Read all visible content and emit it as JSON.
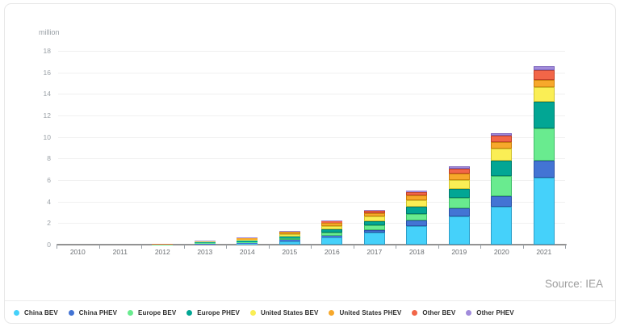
{
  "chart_data": {
    "type": "bar",
    "stacked": true,
    "unit_label": "million",
    "source_label": "Source: IEA",
    "categories": [
      "2010",
      "2011",
      "2012",
      "2013",
      "2014",
      "2015",
      "2016",
      "2017",
      "2018",
      "2019",
      "2020",
      "2021"
    ],
    "series": [
      {
        "name": "China BEV",
        "color": "#45d1fa",
        "border": "#2d9fc9",
        "values": [
          0.002,
          0.005,
          0.01,
          0.08,
          0.12,
          0.3,
          0.65,
          1.1,
          1.75,
          2.6,
          3.5,
          6.2
        ]
      },
      {
        "name": "China PHEV",
        "color": "#4374d4",
        "border": "#2d53a8",
        "values": [
          0.0,
          0.002,
          0.005,
          0.02,
          0.04,
          0.12,
          0.17,
          0.27,
          0.5,
          0.75,
          1.0,
          1.6
        ]
      },
      {
        "name": "Europe BEV",
        "color": "#69eb8f",
        "border": "#3fbd68",
        "values": [
          0.002,
          0.005,
          0.01,
          0.06,
          0.1,
          0.19,
          0.3,
          0.4,
          0.57,
          1.0,
          1.9,
          3.0
        ]
      },
      {
        "name": "Europe PHEV",
        "color": "#02a694",
        "border": "#017d70",
        "values": [
          0.0,
          0.002,
          0.005,
          0.03,
          0.08,
          0.17,
          0.3,
          0.42,
          0.7,
          0.8,
          1.4,
          2.5
        ]
      },
      {
        "name": "United States BEV",
        "color": "#faee55",
        "border": "#d1c32f",
        "values": [
          0.002,
          0.005,
          0.01,
          0.08,
          0.14,
          0.21,
          0.3,
          0.4,
          0.64,
          0.88,
          1.1,
          1.3
        ]
      },
      {
        "name": "United States PHEV",
        "color": "#f7a82b",
        "border": "#cd820e",
        "values": [
          0.001,
          0.005,
          0.02,
          0.09,
          0.15,
          0.19,
          0.27,
          0.35,
          0.45,
          0.55,
          0.65,
          0.73
        ]
      },
      {
        "name": "Other BEV",
        "color": "#f26648",
        "border": "#c44329",
        "values": [
          0.001,
          0.002,
          0.01,
          0.04,
          0.06,
          0.08,
          0.15,
          0.2,
          0.3,
          0.5,
          0.55,
          0.85
        ]
      },
      {
        "name": "Other PHEV",
        "color": "#a18bdb",
        "border": "#7a61bb",
        "values": [
          0.0,
          0.0,
          0.002,
          0.01,
          0.02,
          0.04,
          0.08,
          0.1,
          0.15,
          0.2,
          0.25,
          0.4
        ]
      }
    ],
    "ylim": [
      0,
      18
    ],
    "yticks": [
      0,
      2,
      4,
      6,
      8,
      10,
      12,
      14,
      16,
      18
    ],
    "grid": true,
    "legend_position": "bottom"
  }
}
